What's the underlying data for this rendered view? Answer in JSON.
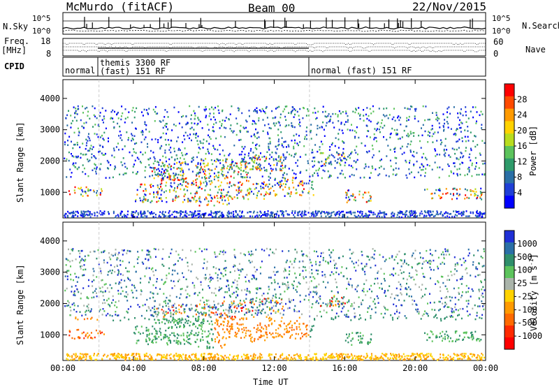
{
  "header": {
    "station": "McMurdo (fitACF)",
    "beam": "Beam 00",
    "date": "22/Nov/2015"
  },
  "top_panels": {
    "nsky_label": "N.Sky",
    "nsky_ticks": [
      "10^5",
      "10^0"
    ],
    "nsearch_label": "N.Search",
    "nsearch_ticks": [
      "10^5",
      "10^0"
    ],
    "freq_label": "Freq.",
    "freq_unit": "[MHz]",
    "freq_ticks": [
      "18",
      "8"
    ],
    "nave_label": "Nave",
    "nave_ticks": [
      "60",
      "0"
    ],
    "cpid_label": "CPID",
    "cpid_segments": [
      "normal",
      "themis 3300 RF",
      "(fast) 151 RF",
      "normal (fast) 151 RF"
    ]
  },
  "chart_data": [
    {
      "type": "heatmap",
      "name": "power-panel",
      "ylabel": "Slant Range [km]",
      "xlabel": "",
      "xlim": [
        0,
        24
      ],
      "ylim": [
        180,
        4600
      ],
      "x_ticks": [
        "00:00",
        "04:00",
        "08:00",
        "12:00",
        "16:00",
        "20:00",
        "00:00"
      ],
      "y_ticks": [
        1000,
        2000,
        3000,
        4000
      ],
      "colorbar": {
        "label": "Power [dB]",
        "ticks": [
          "28",
          "24",
          "20",
          "16",
          "12",
          "8",
          "4"
        ],
        "colors": [
          "#ff0000",
          "#ff4a00",
          "#ff9a00",
          "#ffd200",
          "#b8dc1e",
          "#5cc35c",
          "#2f9b6b",
          "#2a6fa6",
          "#1f3fd6",
          "#0000ff"
        ]
      }
    },
    {
      "type": "heatmap",
      "name": "velocity-panel",
      "ylabel": "Slant Range [km]",
      "xlabel": "Time UT",
      "xlim": [
        0,
        24
      ],
      "ylim": [
        180,
        4600
      ],
      "x_ticks": [
        "00:00",
        "04:00",
        "08:00",
        "12:00",
        "16:00",
        "20:00",
        "00:00"
      ],
      "y_ticks": [
        1000,
        2000,
        3000,
        4000
      ],
      "colorbar": {
        "label": "Velocity [m s^-1]",
        "ticks": [
          "1000",
          "500",
          "100",
          "25",
          "-25",
          "-100",
          "-500",
          "-1000"
        ],
        "colors": [
          "#1f2fd6",
          "#2a6fa6",
          "#2f8f6b",
          "#5cc35c",
          "#aab4aa",
          "#ffd200",
          "#ff9a00",
          "#ff6a00",
          "#ff2a00",
          "#ff0000"
        ]
      }
    }
  ]
}
